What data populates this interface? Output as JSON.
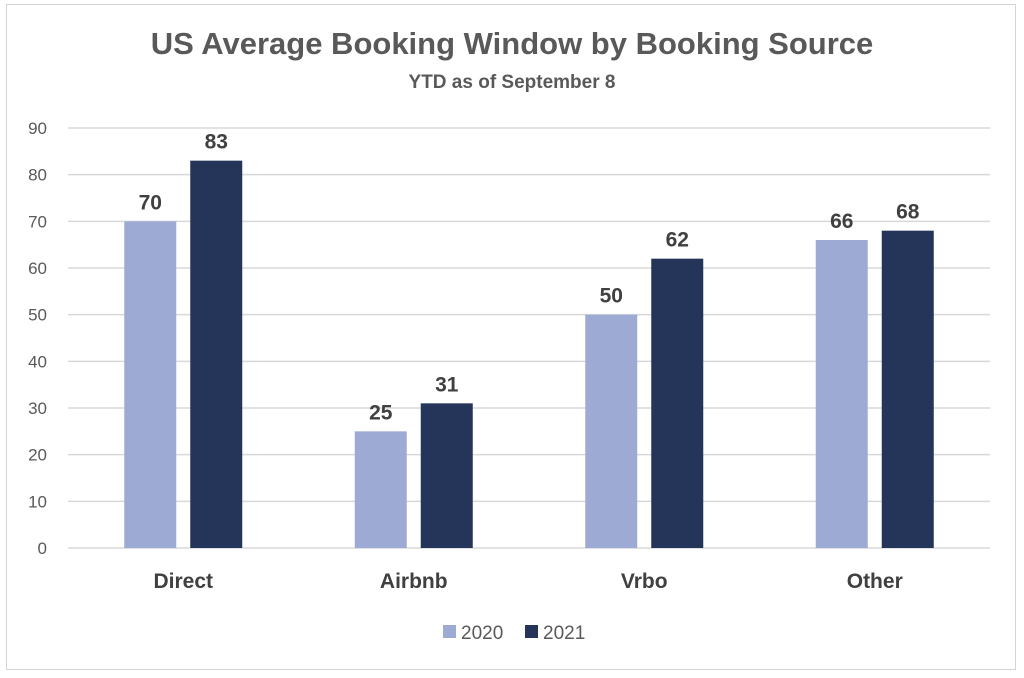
{
  "chart_data": {
    "type": "bar",
    "title": "US Average Booking Window by Booking Source",
    "subtitle": "YTD as of September 8",
    "xlabel": "",
    "ylabel": "",
    "categories": [
      "Direct",
      "Airbnb",
      "Vrbo",
      "Other"
    ],
    "series": [
      {
        "name": "2020",
        "values": [
          70,
          25,
          50,
          66
        ],
        "color": "#9dabd4"
      },
      {
        "name": "2021",
        "values": [
          83,
          31,
          62,
          68
        ],
        "color": "#253459"
      }
    ],
    "ylim": [
      0,
      90
    ],
    "yticks": [
      0,
      10,
      20,
      30,
      40,
      50,
      60,
      70,
      80,
      90
    ],
    "grid": true,
    "data_labels": true,
    "legend_position": "bottom"
  }
}
